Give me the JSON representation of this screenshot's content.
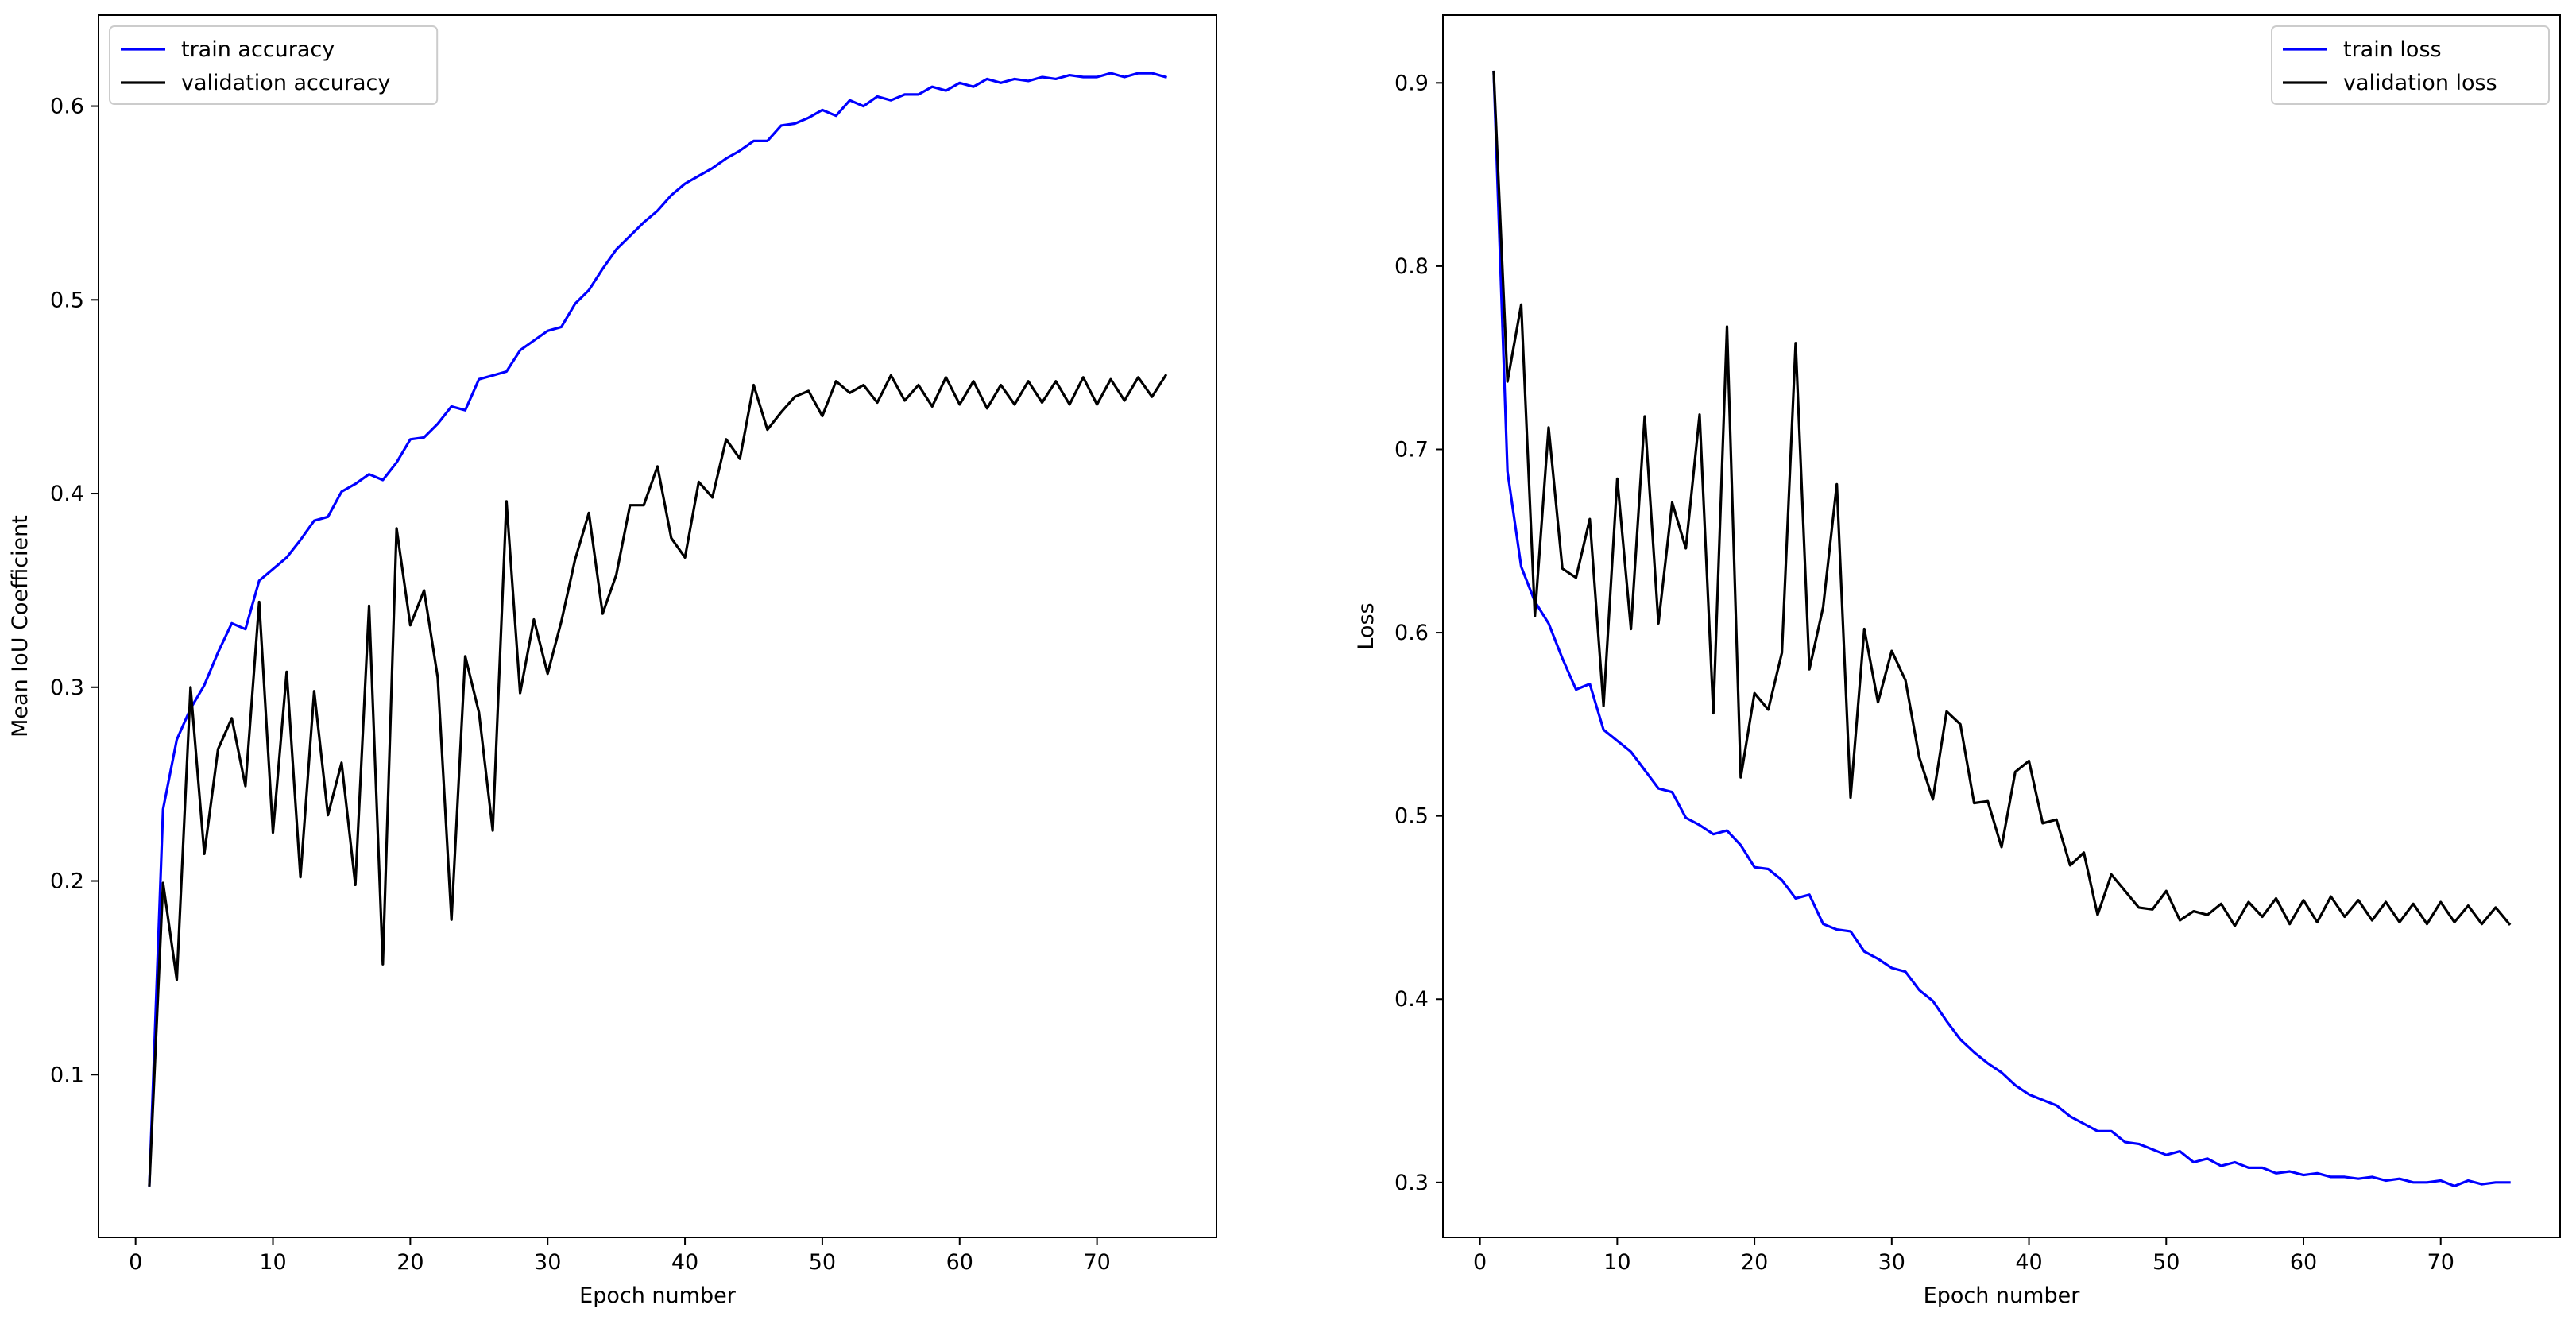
{
  "figure": {
    "background": "#ffffff"
  },
  "chart_data": [
    {
      "type": "line",
      "xlabel": "Epoch number",
      "ylabel": "Mean IoU Coefficient",
      "xlim": [
        -2.7,
        78.7
      ],
      "ylim": [
        0.016,
        0.647
      ],
      "xticks": [
        0,
        10,
        20,
        30,
        40,
        50,
        60,
        70
      ],
      "yticks": [
        0.1,
        0.2,
        0.3,
        0.4,
        0.5,
        0.6
      ],
      "legend_position": "top-left",
      "grid": false,
      "x": [
        1,
        2,
        3,
        4,
        5,
        6,
        7,
        8,
        9,
        10,
        11,
        12,
        13,
        14,
        15,
        16,
        17,
        18,
        19,
        20,
        21,
        22,
        23,
        24,
        25,
        26,
        27,
        28,
        29,
        30,
        31,
        32,
        33,
        34,
        35,
        36,
        37,
        38,
        39,
        40,
        41,
        42,
        43,
        44,
        45,
        46,
        47,
        48,
        49,
        50,
        51,
        52,
        53,
        54,
        55,
        56,
        57,
        58,
        59,
        60,
        61,
        62,
        63,
        64,
        65,
        66,
        67,
        68,
        69,
        70,
        71,
        72,
        73,
        74,
        75
      ],
      "series": [
        {
          "name": "train accuracy",
          "color": "#0000ff",
          "values": [
            0.043,
            0.237,
            0.273,
            0.289,
            0.301,
            0.318,
            0.333,
            0.33,
            0.355,
            0.361,
            0.367,
            0.376,
            0.386,
            0.388,
            0.401,
            0.405,
            0.41,
            0.407,
            0.416,
            0.428,
            0.429,
            0.436,
            0.445,
            0.443,
            0.459,
            0.461,
            0.463,
            0.474,
            0.479,
            0.484,
            0.486,
            0.498,
            0.505,
            0.516,
            0.526,
            0.533,
            0.54,
            0.546,
            0.554,
            0.56,
            0.564,
            0.568,
            0.573,
            0.577,
            0.582,
            0.582,
            0.59,
            0.591,
            0.594,
            0.598,
            0.595,
            0.603,
            0.6,
            0.605,
            0.603,
            0.606,
            0.606,
            0.61,
            0.608,
            0.612,
            0.61,
            0.614,
            0.612,
            0.614,
            0.613,
            0.615,
            0.614,
            0.616,
            0.615,
            0.615,
            0.617,
            0.615,
            0.617,
            0.617,
            0.615
          ]
        },
        {
          "name": "validation accuracy",
          "color": "#000000",
          "values": [
            0.043,
            0.199,
            0.149,
            0.3,
            0.214,
            0.268,
            0.284,
            0.249,
            0.344,
            0.225,
            0.308,
            0.202,
            0.298,
            0.234,
            0.261,
            0.198,
            0.342,
            0.157,
            0.382,
            0.332,
            0.35,
            0.305,
            0.18,
            0.316,
            0.287,
            0.226,
            0.396,
            0.297,
            0.335,
            0.307,
            0.334,
            0.366,
            0.39,
            0.338,
            0.358,
            0.394,
            0.394,
            0.414,
            0.377,
            0.367,
            0.406,
            0.398,
            0.428,
            0.418,
            0.456,
            0.433,
            0.442,
            0.45,
            0.453,
            0.44,
            0.458,
            0.452,
            0.456,
            0.447,
            0.461,
            0.448,
            0.456,
            0.445,
            0.46,
            0.446,
            0.458,
            0.444,
            0.456,
            0.446,
            0.458,
            0.447,
            0.458,
            0.446,
            0.46,
            0.446,
            0.459,
            0.448,
            0.46,
            0.45,
            0.461
          ]
        }
      ]
    },
    {
      "type": "line",
      "xlabel": "Epoch number",
      "ylabel": "Loss",
      "xlim": [
        -2.7,
        78.7
      ],
      "ylim": [
        0.27,
        0.937
      ],
      "xticks": [
        0,
        10,
        20,
        30,
        40,
        50,
        60,
        70
      ],
      "yticks": [
        0.3,
        0.4,
        0.5,
        0.6,
        0.7,
        0.8,
        0.9
      ],
      "legend_position": "top-right",
      "grid": false,
      "x": [
        1,
        2,
        3,
        4,
        5,
        6,
        7,
        8,
        9,
        10,
        11,
        12,
        13,
        14,
        15,
        16,
        17,
        18,
        19,
        20,
        21,
        22,
        23,
        24,
        25,
        26,
        27,
        28,
        29,
        30,
        31,
        32,
        33,
        34,
        35,
        36,
        37,
        38,
        39,
        40,
        41,
        42,
        43,
        44,
        45,
        46,
        47,
        48,
        49,
        50,
        51,
        52,
        53,
        54,
        55,
        56,
        57,
        58,
        59,
        60,
        61,
        62,
        63,
        64,
        65,
        66,
        67,
        68,
        69,
        70,
        71,
        72,
        73,
        74,
        75
      ],
      "series": [
        {
          "name": "train loss",
          "color": "#0000ff",
          "values": [
            0.906,
            0.688,
            0.636,
            0.617,
            0.605,
            0.586,
            0.569,
            0.572,
            0.547,
            0.541,
            0.535,
            0.525,
            0.515,
            0.513,
            0.499,
            0.495,
            0.49,
            0.492,
            0.484,
            0.472,
            0.471,
            0.465,
            0.455,
            0.457,
            0.441,
            0.438,
            0.437,
            0.426,
            0.422,
            0.417,
            0.415,
            0.405,
            0.399,
            0.388,
            0.378,
            0.371,
            0.365,
            0.36,
            0.353,
            0.348,
            0.345,
            0.342,
            0.336,
            0.332,
            0.328,
            0.328,
            0.322,
            0.321,
            0.318,
            0.315,
            0.317,
            0.311,
            0.313,
            0.309,
            0.311,
            0.308,
            0.308,
            0.305,
            0.306,
            0.304,
            0.305,
            0.303,
            0.303,
            0.302,
            0.303,
            0.301,
            0.302,
            0.3,
            0.3,
            0.301,
            0.298,
            0.301,
            0.299,
            0.3,
            0.3
          ]
        },
        {
          "name": "validation loss",
          "color": "#000000",
          "values": [
            0.906,
            0.737,
            0.779,
            0.609,
            0.712,
            0.635,
            0.63,
            0.662,
            0.56,
            0.684,
            0.602,
            0.718,
            0.605,
            0.671,
            0.646,
            0.719,
            0.556,
            0.767,
            0.521,
            0.567,
            0.558,
            0.589,
            0.758,
            0.58,
            0.614,
            0.681,
            0.51,
            0.602,
            0.562,
            0.59,
            0.574,
            0.532,
            0.509,
            0.557,
            0.55,
            0.507,
            0.508,
            0.483,
            0.524,
            0.53,
            0.496,
            0.498,
            0.473,
            0.48,
            0.446,
            0.468,
            0.459,
            0.45,
            0.449,
            0.459,
            0.443,
            0.448,
            0.446,
            0.452,
            0.44,
            0.453,
            0.445,
            0.455,
            0.441,
            0.454,
            0.442,
            0.456,
            0.445,
            0.454,
            0.443,
            0.453,
            0.442,
            0.452,
            0.441,
            0.453,
            0.442,
            0.451,
            0.441,
            0.45,
            0.441
          ]
        }
      ]
    }
  ]
}
